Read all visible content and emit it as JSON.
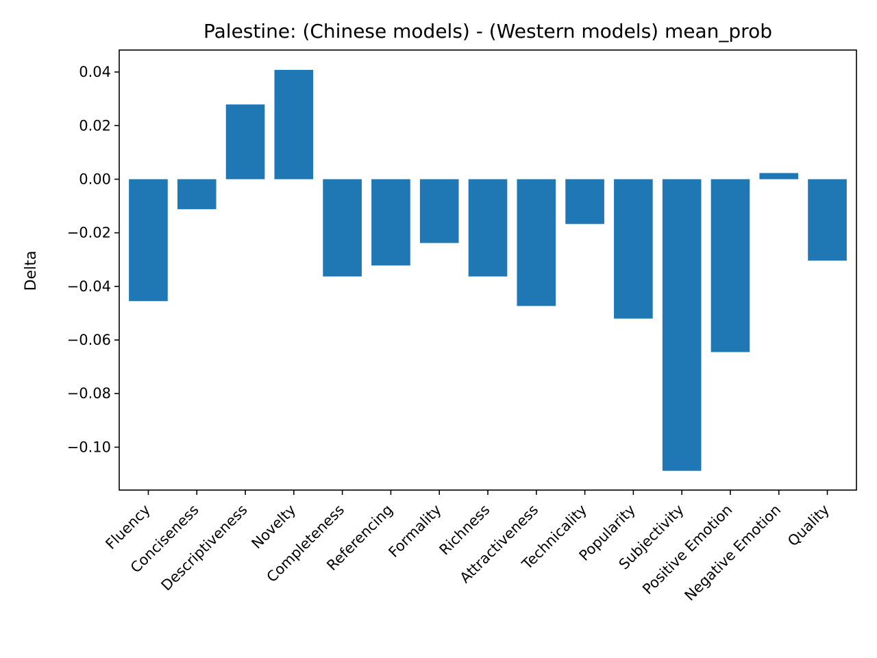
{
  "chart_data": {
    "type": "bar",
    "title": "Palestine: (Chinese models) - (Western models) mean_prob",
    "xlabel": "",
    "ylabel": "Delta",
    "categories": [
      "Fluency",
      "Conciseness",
      "Descriptiveness",
      "Novelty",
      "Completeness",
      "Referencing",
      "Formality",
      "Richness",
      "Attractiveness",
      "Technicality",
      "Popularity",
      "Subjectivity",
      "Positive Emotion",
      "Negative Emotion",
      "Quality"
    ],
    "values": [
      -0.0455,
      -0.0112,
      0.0279,
      0.0408,
      -0.0363,
      -0.0322,
      -0.0238,
      -0.0363,
      -0.0473,
      -0.0167,
      -0.052,
      -0.1088,
      -0.0645,
      0.0023,
      -0.0304
    ],
    "ylim": [
      -0.116,
      0.0482
    ],
    "yticks": [
      0.04,
      0.02,
      0.0,
      -0.02,
      -0.04,
      -0.06,
      -0.08,
      -0.1
    ],
    "ytick_labels": [
      "0.04",
      "0.02",
      "0.00",
      "−0.02",
      "−0.04",
      "−0.06",
      "−0.08",
      "−0.10"
    ],
    "bar_color": "#1f77b4",
    "grid": false,
    "legend": "none"
  }
}
